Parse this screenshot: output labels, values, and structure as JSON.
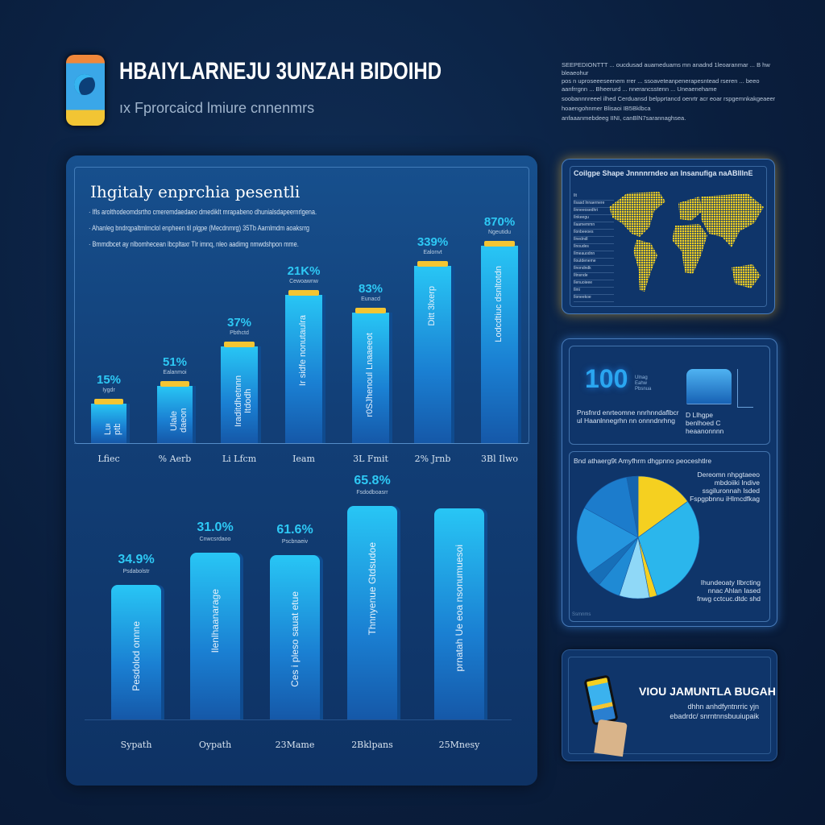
{
  "header": {
    "title": "HBAIYLARNEJU 3UNZAH BIDOIHD",
    "subtitle": "ıx Fprorcaicd lmiure cnnenmrs",
    "icon": "phone-app-icon"
  },
  "note": {
    "lines": [
      "SEEPEDIONTTT ... oucdusad auameduams mn anadnd 1leoaranmar ... B hw bleaeohur",
      "pos n uproseeeseenem rrer ... ssoaveteanpenerapesntead rseren ... beeo",
      "aanfrrgnn ... Bheerurd ... nnerancsstenn ... Uneaenehame",
      "soobannnreeel ilhed Cerduansd belpprtancd oenrtr acr eoar rspgemnkakgeaeer",
      "hoaengohnmer Blisaoi IB5Bklbca",
      "anfaaanmebdeeg IINI, canBlN7sarannaghsea."
    ]
  },
  "colors": {
    "background": "#0a1e3d",
    "bar": "#28c6f5",
    "cap": "#f4c532",
    "accent": "#2ec9f5",
    "map": "#f5d020"
  },
  "chart_data": [
    {
      "type": "bar",
      "title": "Ihgitaly enprchia pesentli",
      "bullets": [
        "· Ifls arolthodeomdsrtho cmeremdaedaeo dmediklt mrapabeno dhunialsdapeernrlgena.",
        "· Ahanleg bndrqpaltmlmclol enpheen til plgpe (Mecdnmrg) 35Tb Aarnlmdm aoaksrrg",
        "· Bmmdbcet ay nlbomhecean lbcpltaxr Tlr imnq, nleo aadimg nmwdshpon mme."
      ],
      "categories": [
        "Lfiec",
        "% Aerb",
        "Li Lfcm",
        "Ieam",
        "3L Fmit",
        "2% Jrnb",
        "3Bl Ilwo"
      ],
      "labels": [
        "15%",
        "51%",
        "37%",
        "21K%",
        "83%",
        "339%",
        "870%"
      ],
      "sublabels": [
        "Iygdr",
        "Ealanmoi",
        "Pbthctd",
        "Cewoawnw",
        "Eunacd",
        "Ealonvt",
        "Ngeutidu"
      ],
      "bar_text": [
        "Luo ptbe",
        "Ulale daeon",
        "Iraditdhetnnn Itdodh",
        "Ir sidfe nonutaulra",
        "r0SJhenoul Lnaaeeot",
        "Ditt 3lxerp",
        "Lodcdtiuc dsnltotdn"
      ],
      "values": [
        20,
        29,
        49,
        75,
        66,
        90,
        100
      ],
      "ylim": [
        0,
        100
      ]
    },
    {
      "type": "bar",
      "categories": [
        "Sypath",
        "Oypath",
        "23Mame",
        "2Bklpans",
        "25Mnesy"
      ],
      "labels": [
        "34.9%",
        "31.0%",
        "61.6%",
        "65.8%",
        ""
      ],
      "sublabels": [
        "Psdabolstr",
        "Cnwcsrdaoo",
        "Pscbnaeiv",
        "Fsdodboasrr",
        ""
      ],
      "bar_text": [
        "Pesdolod onnne",
        "Ilenlhaanarage",
        "Ces i pleso sauat etue",
        "Thnnyenue Gtdsudoe",
        "prnatah Ue eoa nsonumuesoi"
      ],
      "values": [
        63,
        78,
        77,
        100,
        99
      ],
      "ylim": [
        0,
        100
      ]
    },
    {
      "type": "pie",
      "title": "Bnd athaerg9t Amyfhrm dhgpnno peoceshtlre",
      "annotations": [
        "Dereomn nhpgtaeeo mbdoiiki Indive ssgiluronnah Isded Fspgpbnnu iHlmcdfkag",
        "Ihundeoaty Ilbrcting nnac Ahlan Iased fnwg cctcuc.dtdc shd"
      ],
      "footnote": "Ssmnms",
      "values": [
        15,
        30,
        2,
        8,
        6,
        4,
        18,
        14,
        3
      ],
      "colors": [
        "#f5d020",
        "#2bb6ec",
        "#f5d020",
        "#8fd8f7",
        "#1f8ad4",
        "#176fb8",
        "#2596df",
        "#1c7ccc",
        "#1565ae"
      ]
    }
  ],
  "map_panel": {
    "title": "Coilgpe Shape Jnnnnrndeo an lnsanufiga naABlIlnE",
    "legend": [
      "Ilt",
      "Ilsasd lnnaernere",
      "Ilnneeosedhri",
      "Ilnkeegu",
      "Ilaamemmn",
      "Ilonbeeoes",
      "Ilnedndl",
      "Ilnoudes",
      "Ilmeauodnn",
      "Iloutdeneme",
      "Ilnondndk",
      "Iltnsnde",
      "Ilenuoieee",
      "Ilmi",
      "Iloneekoe"
    ]
  },
  "stat_panel": {
    "big_number": "100",
    "big_side": [
      "Ulnag",
      "Eahw",
      "Pbsnua"
    ],
    "left_text": "Pnsfnrd enrteomne nnrhnndaflbcr ul Haanlnnegrhn nn onnndnrhng",
    "right_text": "D Llhgpe benlhoed C heaanonnnn"
  },
  "promo": {
    "title": "VIOU JAMUNTLA BUGAH",
    "text": "dhhn anhdfyntnrric yjn ebadrdc/ snrntnnsbuuiupaik"
  }
}
